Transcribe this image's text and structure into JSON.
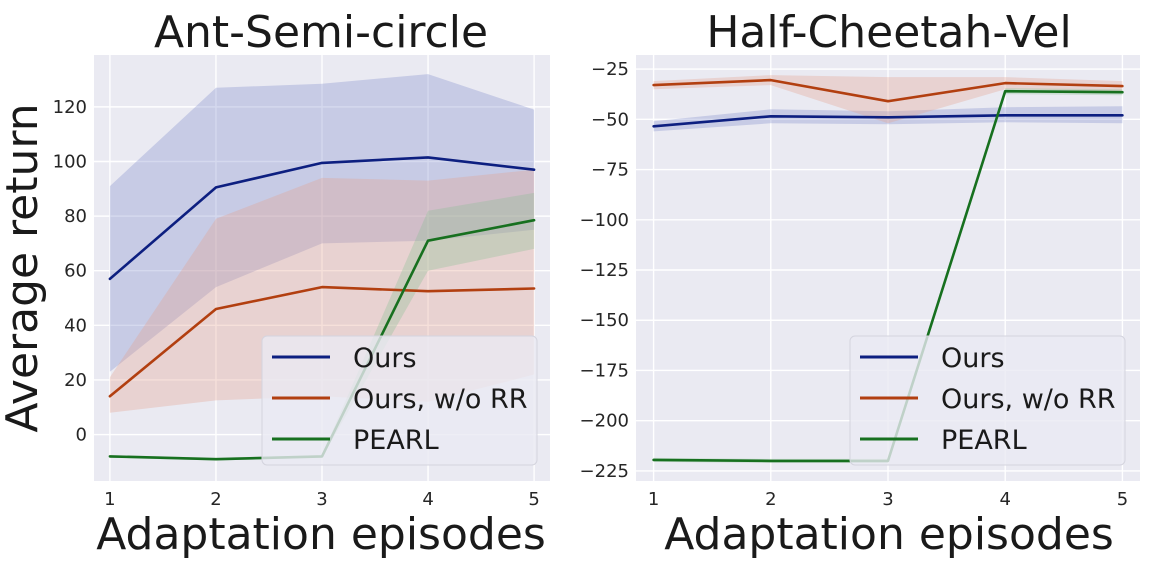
{
  "figure": {
    "shared_ylabel": "Average return"
  },
  "chart_data": [
    {
      "type": "line",
      "title": "Ant-Semi-circle",
      "xlabel": "Adaptation episodes",
      "ylabel": "Average return",
      "x": [
        1,
        2,
        3,
        4,
        5
      ],
      "xlim": [
        0.85,
        5.15
      ],
      "ylim": [
        -17,
        139
      ],
      "xticks": [
        1,
        2,
        3,
        4,
        5
      ],
      "yticks": [
        0,
        20,
        40,
        60,
        80,
        100,
        120
      ],
      "grid": true,
      "legend_position": "lower-right",
      "series": [
        {
          "name": "Ours",
          "color": "#0d1f80",
          "band_color": "#7f8ccc",
          "values": [
            57,
            90.5,
            99.5,
            101.5,
            97
          ],
          "lower": [
            23,
            54,
            70,
            71,
            75
          ],
          "upper": [
            91,
            127,
            128.5,
            132,
            119
          ]
        },
        {
          "name": "Ours, w/o RR",
          "color": "#b23f10",
          "band_color": "#e3a08e",
          "values": [
            14,
            46,
            54,
            52.5,
            53.5
          ],
          "lower": [
            8,
            12.5,
            14,
            12,
            22
          ],
          "upper": [
            21,
            79,
            94,
            93,
            97
          ]
        },
        {
          "name": "PEARL",
          "color": "#17701f",
          "band_color": "#8cc095",
          "values": [
            -8,
            -9,
            -8,
            71,
            78.5
          ],
          "lower": [
            -8.5,
            -9.5,
            -8.5,
            60,
            68
          ],
          "upper": [
            -7.5,
            -8.5,
            -7.5,
            82,
            88.5
          ]
        }
      ]
    },
    {
      "type": "line",
      "title": "Half-Cheetah-Vel",
      "xlabel": "Adaptation episodes",
      "ylabel": "",
      "x": [
        1,
        2,
        3,
        4,
        5
      ],
      "xlim": [
        0.85,
        5.15
      ],
      "ylim": [
        -230,
        -18
      ],
      "xticks": [
        1,
        2,
        3,
        4,
        5
      ],
      "yticks": [
        -25,
        -50,
        -75,
        -100,
        -125,
        -150,
        -175,
        -200,
        -225
      ],
      "grid": true,
      "legend_position": "lower-right",
      "series": [
        {
          "name": "Ours",
          "color": "#0d1f80",
          "band_color": "#7f8ccc",
          "values": [
            -53.5,
            -48.5,
            -49,
            -48,
            -48
          ],
          "lower": [
            -56,
            -52,
            -52.5,
            -51.5,
            -52
          ],
          "upper": [
            -51,
            -45,
            -46,
            -44,
            -43.5
          ]
        },
        {
          "name": "Ours, w/o RR",
          "color": "#b23f10",
          "band_color": "#e3a08e",
          "values": [
            -33,
            -30.5,
            -41,
            -32,
            -33.5
          ],
          "lower": [
            -35,
            -33,
            -52,
            -35,
            -36
          ],
          "upper": [
            -31,
            -28,
            -29,
            -29,
            -31
          ]
        },
        {
          "name": "PEARL",
          "color": "#17701f",
          "band_color": "#8cc095",
          "values": [
            -219.5,
            -220,
            -220,
            -36,
            -36.5
          ],
          "lower": [
            -220.5,
            -221,
            -221,
            -37.5,
            -38
          ],
          "upper": [
            -218.5,
            -219,
            -219,
            -34.5,
            -35
          ]
        }
      ]
    }
  ]
}
